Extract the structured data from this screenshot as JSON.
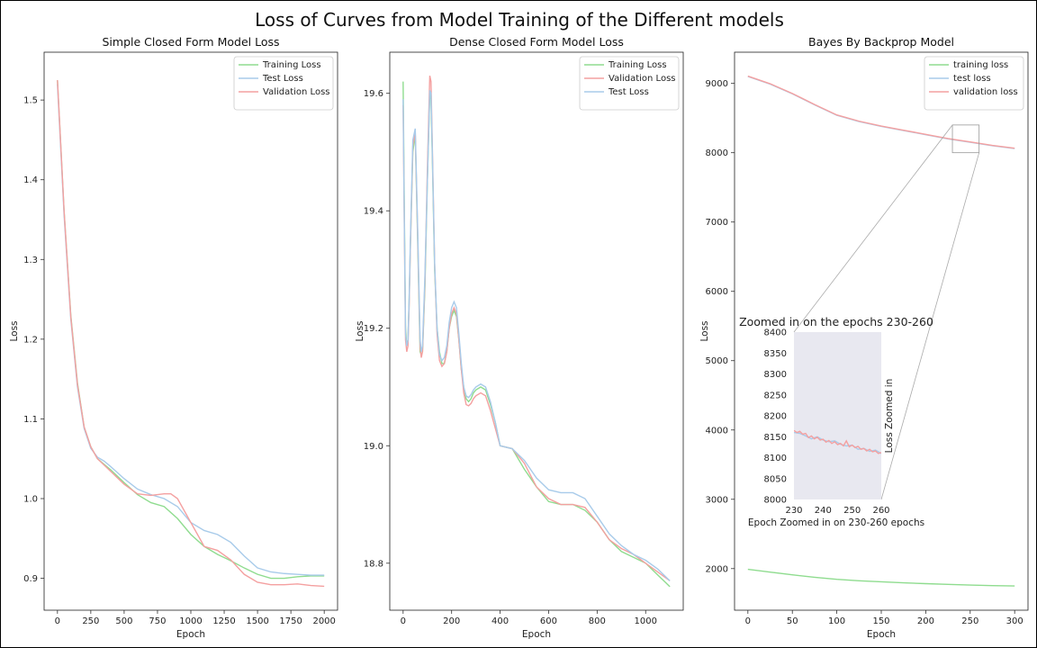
{
  "figure_title": "Loss of Curves from Model Training of the Different models",
  "colors": {
    "green": "#8fdc8f",
    "blue": "#a8cbea",
    "red": "#f4a0a0",
    "inset_bg": "#e8e8f0"
  },
  "chart_data": [
    {
      "type": "line",
      "title": "Simple Closed Form Model Loss",
      "xlabel": "Epoch",
      "ylabel": "Loss",
      "xlim": [
        -100,
        2100
      ],
      "ylim": [
        0.86,
        1.56
      ],
      "xticks": [
        0,
        250,
        500,
        750,
        1000,
        1250,
        1500,
        1750,
        2000
      ],
      "yticks": [
        0.9,
        1.0,
        1.1,
        1.2,
        1.3,
        1.4,
        1.5
      ],
      "ytick_decimals": 1,
      "legend": "top-right",
      "grid": false,
      "series": [
        {
          "name": "Training Loss",
          "color": "green",
          "x": [
            0,
            50,
            100,
            150,
            200,
            250,
            300,
            350,
            400,
            500,
            600,
            700,
            800,
            900,
            1000,
            1100,
            1200,
            1300,
            1400,
            1500,
            1600,
            1700,
            1800,
            1900,
            2000
          ],
          "y": [
            1.525,
            1.36,
            1.23,
            1.145,
            1.09,
            1.065,
            1.05,
            1.043,
            1.036,
            1.02,
            1.005,
            0.995,
            0.99,
            0.975,
            0.955,
            0.94,
            0.93,
            0.922,
            0.913,
            0.905,
            0.9,
            0.9,
            0.902,
            0.903,
            0.903
          ]
        },
        {
          "name": "Test Loss",
          "color": "blue",
          "x": [
            0,
            50,
            100,
            150,
            200,
            250,
            300,
            350,
            400,
            500,
            600,
            700,
            800,
            900,
            1000,
            1100,
            1200,
            1300,
            1400,
            1500,
            1600,
            1700,
            1800,
            1900,
            2000
          ],
          "y": [
            1.52,
            1.355,
            1.225,
            1.14,
            1.088,
            1.063,
            1.052,
            1.047,
            1.04,
            1.025,
            1.012,
            1.005,
            1.0,
            0.99,
            0.97,
            0.96,
            0.955,
            0.945,
            0.928,
            0.913,
            0.908,
            0.906,
            0.905,
            0.904,
            0.904
          ]
        },
        {
          "name": "Validation Loss",
          "color": "red",
          "x": [
            0,
            50,
            100,
            150,
            200,
            250,
            300,
            350,
            400,
            500,
            600,
            700,
            800,
            850,
            900,
            1000,
            1100,
            1200,
            1300,
            1400,
            1500,
            1600,
            1700,
            1800,
            1900,
            2000
          ],
          "y": [
            1.525,
            1.36,
            1.228,
            1.143,
            1.09,
            1.065,
            1.05,
            1.042,
            1.034,
            1.018,
            1.006,
            1.004,
            1.006,
            1.006,
            1.0,
            0.97,
            0.94,
            0.935,
            0.923,
            0.905,
            0.895,
            0.892,
            0.892,
            0.893,
            0.891,
            0.89
          ]
        }
      ]
    },
    {
      "type": "line",
      "title": "Dense Closed Form Model Loss",
      "xlabel": "Epoch",
      "ylabel": "Loss",
      "xlim": [
        -55,
        1155
      ],
      "ylim": [
        18.72,
        19.67
      ],
      "xticks": [
        0,
        200,
        400,
        600,
        800,
        1000
      ],
      "yticks": [
        18.8,
        19.0,
        19.2,
        19.4,
        19.6
      ],
      "ytick_decimals": 1,
      "legend": "top-right",
      "grid": false,
      "series": [
        {
          "name": "Training Loss",
          "color": "green",
          "x": [
            0,
            5,
            10,
            15,
            20,
            25,
            30,
            40,
            50,
            60,
            70,
            75,
            80,
            90,
            100,
            110,
            115,
            120,
            130,
            140,
            150,
            160,
            170,
            180,
            190,
            200,
            210,
            220,
            230,
            240,
            250,
            260,
            270,
            280,
            290,
            300,
            320,
            340,
            360,
            380,
            400,
            450,
            500,
            550,
            600,
            650,
            700,
            750,
            800,
            850,
            900,
            950,
            1000,
            1050,
            1100
          ],
          "y": [
            19.62,
            19.4,
            19.2,
            19.17,
            19.18,
            19.25,
            19.34,
            19.5,
            19.53,
            19.35,
            19.16,
            19.155,
            19.16,
            19.27,
            19.45,
            19.6,
            19.59,
            19.5,
            19.3,
            19.2,
            19.16,
            19.14,
            19.14,
            19.16,
            19.2,
            19.22,
            19.23,
            19.22,
            19.18,
            19.13,
            19.1,
            19.08,
            19.075,
            19.08,
            19.09,
            19.095,
            19.1,
            19.095,
            19.07,
            19.04,
            19.0,
            18.995,
            18.96,
            18.93,
            18.905,
            18.9,
            18.9,
            18.89,
            18.87,
            18.84,
            18.82,
            18.81,
            18.8,
            18.78,
            18.76
          ]
        },
        {
          "name": "Validation Loss",
          "color": "red",
          "x": [
            0,
            5,
            10,
            15,
            20,
            25,
            30,
            40,
            50,
            60,
            70,
            75,
            80,
            90,
            100,
            110,
            115,
            120,
            130,
            140,
            150,
            160,
            170,
            180,
            190,
            200,
            210,
            220,
            230,
            240,
            250,
            260,
            270,
            280,
            290,
            300,
            320,
            340,
            360,
            380,
            400,
            450,
            500,
            550,
            600,
            650,
            700,
            750,
            800,
            850,
            900,
            950,
            1000,
            1050,
            1100
          ],
          "y": [
            19.58,
            19.37,
            19.18,
            19.16,
            19.17,
            19.24,
            19.34,
            19.51,
            19.535,
            19.36,
            19.17,
            19.15,
            19.16,
            19.28,
            19.47,
            19.63,
            19.62,
            19.52,
            19.31,
            19.19,
            19.145,
            19.135,
            19.14,
            19.16,
            19.2,
            19.225,
            19.235,
            19.225,
            19.18,
            19.13,
            19.09,
            19.07,
            19.068,
            19.072,
            19.08,
            19.085,
            19.09,
            19.085,
            19.06,
            19.03,
            19.0,
            18.995,
            18.97,
            18.93,
            18.91,
            18.9,
            18.9,
            18.895,
            18.87,
            18.84,
            18.825,
            18.815,
            18.8,
            18.785,
            18.77
          ]
        },
        {
          "name": "Test Loss",
          "color": "blue",
          "x": [
            0,
            5,
            10,
            15,
            20,
            25,
            30,
            40,
            50,
            60,
            70,
            75,
            80,
            90,
            100,
            110,
            115,
            120,
            130,
            140,
            150,
            160,
            170,
            180,
            190,
            200,
            210,
            220,
            230,
            240,
            250,
            260,
            270,
            280,
            290,
            300,
            320,
            340,
            360,
            380,
            400,
            450,
            500,
            550,
            600,
            650,
            700,
            750,
            800,
            850,
            900,
            950,
            1000,
            1050,
            1100
          ],
          "y": [
            19.59,
            19.38,
            19.19,
            19.17,
            19.18,
            19.25,
            19.35,
            19.52,
            19.54,
            19.37,
            19.18,
            19.16,
            19.17,
            19.29,
            19.45,
            19.605,
            19.6,
            19.51,
            19.31,
            19.2,
            19.155,
            19.145,
            19.15,
            19.17,
            19.21,
            19.235,
            19.245,
            19.235,
            19.19,
            19.14,
            19.1,
            19.085,
            19.082,
            19.087,
            19.095,
            19.1,
            19.105,
            19.1,
            19.075,
            19.04,
            19.0,
            18.995,
            18.975,
            18.945,
            18.925,
            18.92,
            18.92,
            18.91,
            18.88,
            18.85,
            18.83,
            18.815,
            18.805,
            18.79,
            18.77
          ]
        }
      ]
    },
    {
      "type": "line",
      "title": "Bayes By Backprop Model",
      "xlabel": "Epoch",
      "ylabel": "Loss",
      "xlim": [
        -15,
        315
      ],
      "ylim": [
        1400,
        9450
      ],
      "xticks": [
        0,
        50,
        100,
        150,
        200,
        250,
        300
      ],
      "yticks": [
        2000,
        3000,
        4000,
        5000,
        6000,
        7000,
        8000,
        9000
      ],
      "ytick_decimals": 0,
      "legend": "top-right",
      "grid": false,
      "series": [
        {
          "name": "training loss",
          "color": "green",
          "x": [
            0,
            25,
            50,
            75,
            100,
            125,
            150,
            175,
            200,
            225,
            250,
            275,
            300
          ],
          "y": [
            1990,
            1950,
            1910,
            1875,
            1845,
            1825,
            1810,
            1795,
            1783,
            1772,
            1763,
            1755,
            1750
          ]
        },
        {
          "name": "test loss",
          "color": "blue",
          "x": [
            0,
            25,
            50,
            75,
            100,
            125,
            150,
            175,
            200,
            225,
            250,
            275,
            300
          ],
          "y": [
            9100,
            8990,
            8850,
            8690,
            8540,
            8450,
            8380,
            8320,
            8260,
            8200,
            8150,
            8100,
            8060
          ]
        },
        {
          "name": "validation loss",
          "color": "red",
          "x": [
            0,
            25,
            50,
            75,
            100,
            125,
            150,
            175,
            200,
            225,
            250,
            275,
            300
          ],
          "y": [
            9105,
            8995,
            8855,
            8695,
            8545,
            8455,
            8385,
            8325,
            8265,
            8205,
            8155,
            8105,
            8065
          ]
        }
      ]
    },
    {
      "type": "line",
      "title": "Zoomed in on the epochs 230-260",
      "xlabel": "Epoch Zoomed in on 230-260 epochs",
      "ylabel": "Loss Zoomed in",
      "xlim": [
        230,
        260
      ],
      "ylim": [
        8000,
        8400
      ],
      "xticks": [
        230,
        240,
        250,
        260
      ],
      "yticks": [
        8000,
        8050,
        8100,
        8150,
        8200,
        8250,
        8300,
        8350,
        8400
      ],
      "ytick_decimals": 0,
      "legend": "none",
      "grid": false,
      "zoom_region": {
        "x": [
          230,
          260
        ],
        "y": [
          8000,
          8400
        ]
      },
      "series": [
        {
          "color": "blue",
          "x": [
            230,
            232,
            234,
            236,
            238,
            240,
            242,
            244,
            246,
            248,
            250,
            252,
            254,
            256,
            258,
            260
          ],
          "y": [
            8160,
            8158,
            8152,
            8145,
            8150,
            8142,
            8138,
            8140,
            8132,
            8128,
            8130,
            8120,
            8122,
            8115,
            8118,
            8110
          ]
        },
        {
          "color": "red",
          "x": [
            230,
            231,
            232,
            233,
            234,
            235,
            236,
            237,
            238,
            239,
            240,
            241,
            242,
            243,
            244,
            245,
            246,
            247,
            248,
            249,
            250,
            251,
            252,
            253,
            254,
            255,
            256,
            257,
            258,
            259,
            260
          ],
          "y": [
            8165,
            8160,
            8163,
            8156,
            8158,
            8148,
            8152,
            8145,
            8149,
            8142,
            8144,
            8137,
            8141,
            8134,
            8138,
            8131,
            8134,
            8128,
            8140,
            8126,
            8130,
            8124,
            8127,
            8120,
            8122,
            8116,
            8120,
            8114,
            8116,
            8110,
            8112
          ]
        }
      ]
    }
  ]
}
